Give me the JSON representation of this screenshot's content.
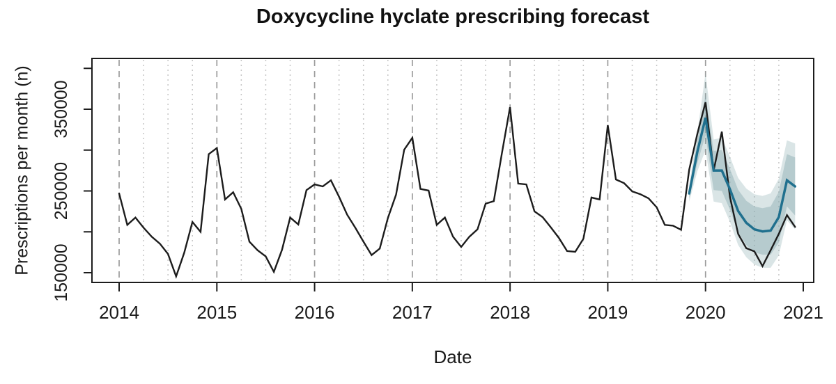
{
  "chart_data": {
    "type": "line",
    "title": "Doxycycline hyclate prescribing forecast",
    "xlabel": "Date",
    "ylabel": "Prescriptions per month (n)",
    "x_ticks": [
      2014,
      2015,
      2016,
      2017,
      2018,
      2019,
      2020,
      2021
    ],
    "y_ticks": [
      150000,
      200000,
      250000,
      300000,
      350000,
      400000
    ],
    "y_tick_labels_shown": [
      150000,
      250000,
      350000
    ],
    "ylim": [
      138000,
      413000
    ],
    "grid": {
      "year_gridlines": "dashed",
      "quarter_gridlines": "dotted",
      "legend": "none"
    },
    "colors": {
      "observed_line": "#1c1c1c",
      "forecast_line": "#20708e",
      "band_80": "rgba(134,168,173,0.42)",
      "band_95": "rgba(134,168,173,0.30)",
      "year_grid": "#9b9b9b",
      "quarter_grid": "#c6c6c6"
    },
    "series": [
      {
        "name": "observed",
        "start": "2014-01",
        "frequency": "monthly",
        "values": [
          247000,
          208500,
          217500,
          205000,
          194000,
          185500,
          173000,
          145500,
          174500,
          212000,
          200000,
          295000,
          302500,
          239500,
          248500,
          228000,
          188000,
          177500,
          170000,
          151000,
          178000,
          217500,
          209000,
          251000,
          258000,
          255500,
          263000,
          243000,
          221000,
          205000,
          188000,
          171500,
          179500,
          217000,
          245500,
          300500,
          315000,
          252500,
          250500,
          208500,
          217500,
          194000,
          181500,
          194000,
          203000,
          234500,
          237500,
          296500,
          352500,
          259000,
          258000,
          225000,
          218000,
          205500,
          192500,
          176500,
          175500,
          191500,
          242000,
          239500,
          330500,
          264000,
          259500,
          249500,
          246000,
          241000,
          230000,
          208500,
          207500,
          202500,
          276000,
          320000,
          358500,
          275000,
          322500,
          242500,
          197500,
          180000,
          176000,
          158000,
          177500,
          197500,
          220500,
          206000
        ]
      },
      {
        "name": "forecast",
        "start": "2019-11",
        "frequency": "monthly",
        "months": [
          "2019-11",
          "2019-12",
          "2020-01",
          "2020-02",
          "2020-03",
          "2020-04",
          "2020-05",
          "2020-06",
          "2020-07",
          "2020-08",
          "2020-09",
          "2020-10",
          "2020-11",
          "2020-12"
        ],
        "values": [
          247000,
          298000,
          339500,
          275000,
          275000,
          252000,
          225500,
          211000,
          203000,
          200500,
          201500,
          218000,
          263000,
          255500
        ]
      }
    ],
    "bands": [
      {
        "name": "95% prediction interval",
        "start": "2019-11",
        "lower": [
          237000,
          274000,
          300000,
          237000,
          235000,
          212000,
          184000,
          169000,
          160000,
          156000,
          156000,
          171000,
          214000,
          203000
        ],
        "upper": [
          257000,
          322000,
          394000,
          313000,
          315000,
          292000,
          266000,
          253000,
          246000,
          244000,
          247000,
          265000,
          312000,
          308000
        ]
      },
      {
        "name": "80% prediction interval",
        "start": "2019-11",
        "lower": [
          241000,
          284000,
          318000,
          251000,
          250000,
          227000,
          199500,
          184000,
          175000,
          172000,
          172000,
          187000,
          231000,
          220000
        ],
        "upper": [
          253000,
          312000,
          367000,
          299000,
          300000,
          277000,
          251500,
          238000,
          231000,
          229000,
          231000,
          249000,
          295000,
          291000
        ]
      }
    ]
  }
}
